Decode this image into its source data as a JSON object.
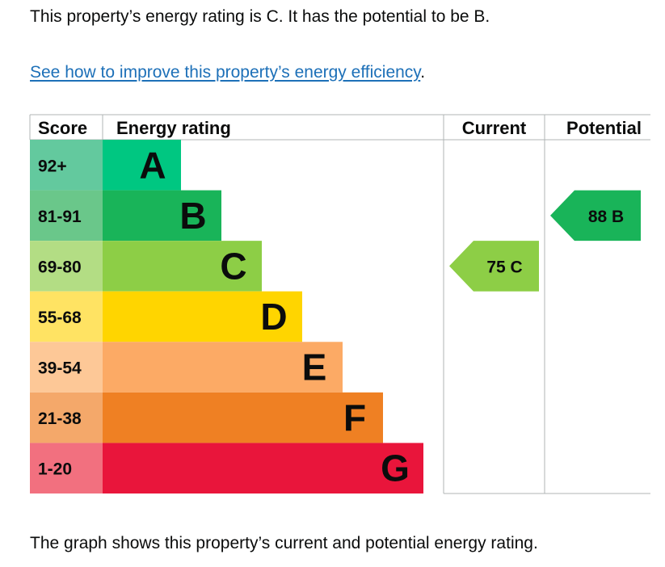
{
  "summary_text": "This property’s energy rating is C. It has the potential to be B.",
  "improve_link_text": "See how to improve this property’s energy efficiency",
  "improve_link_suffix": ".",
  "caption_text": "The graph shows this property’s current and potential energy rating.",
  "chart_data": {
    "type": "bar",
    "columns": [
      "Score",
      "Energy rating",
      "Current",
      "Potential"
    ],
    "bands": [
      {
        "letter": "A",
        "score": "92+",
        "color": "#00c781",
        "score_bg": "#63c99e"
      },
      {
        "letter": "B",
        "score": "81-91",
        "color": "#19b459",
        "score_bg": "#6ac78a"
      },
      {
        "letter": "C",
        "score": "69-80",
        "color": "#8dce46",
        "score_bg": "#b3dd84"
      },
      {
        "letter": "D",
        "score": "55-68",
        "color": "#ffd500",
        "score_bg": "#ffe363"
      },
      {
        "letter": "E",
        "score": "39-54",
        "color": "#fcaa65",
        "score_bg": "#fdc897"
      },
      {
        "letter": "F",
        "score": "21-38",
        "color": "#ef8023",
        "score_bg": "#f4a86a"
      },
      {
        "letter": "G",
        "score": "1-20",
        "color": "#e9153b",
        "score_bg": "#f2707f"
      }
    ],
    "current": {
      "value": 75,
      "letter": "C",
      "label": "75  C",
      "color": "#8dce46"
    },
    "potential": {
      "value": 88,
      "letter": "B",
      "label": "88  B",
      "color": "#19b459"
    }
  }
}
